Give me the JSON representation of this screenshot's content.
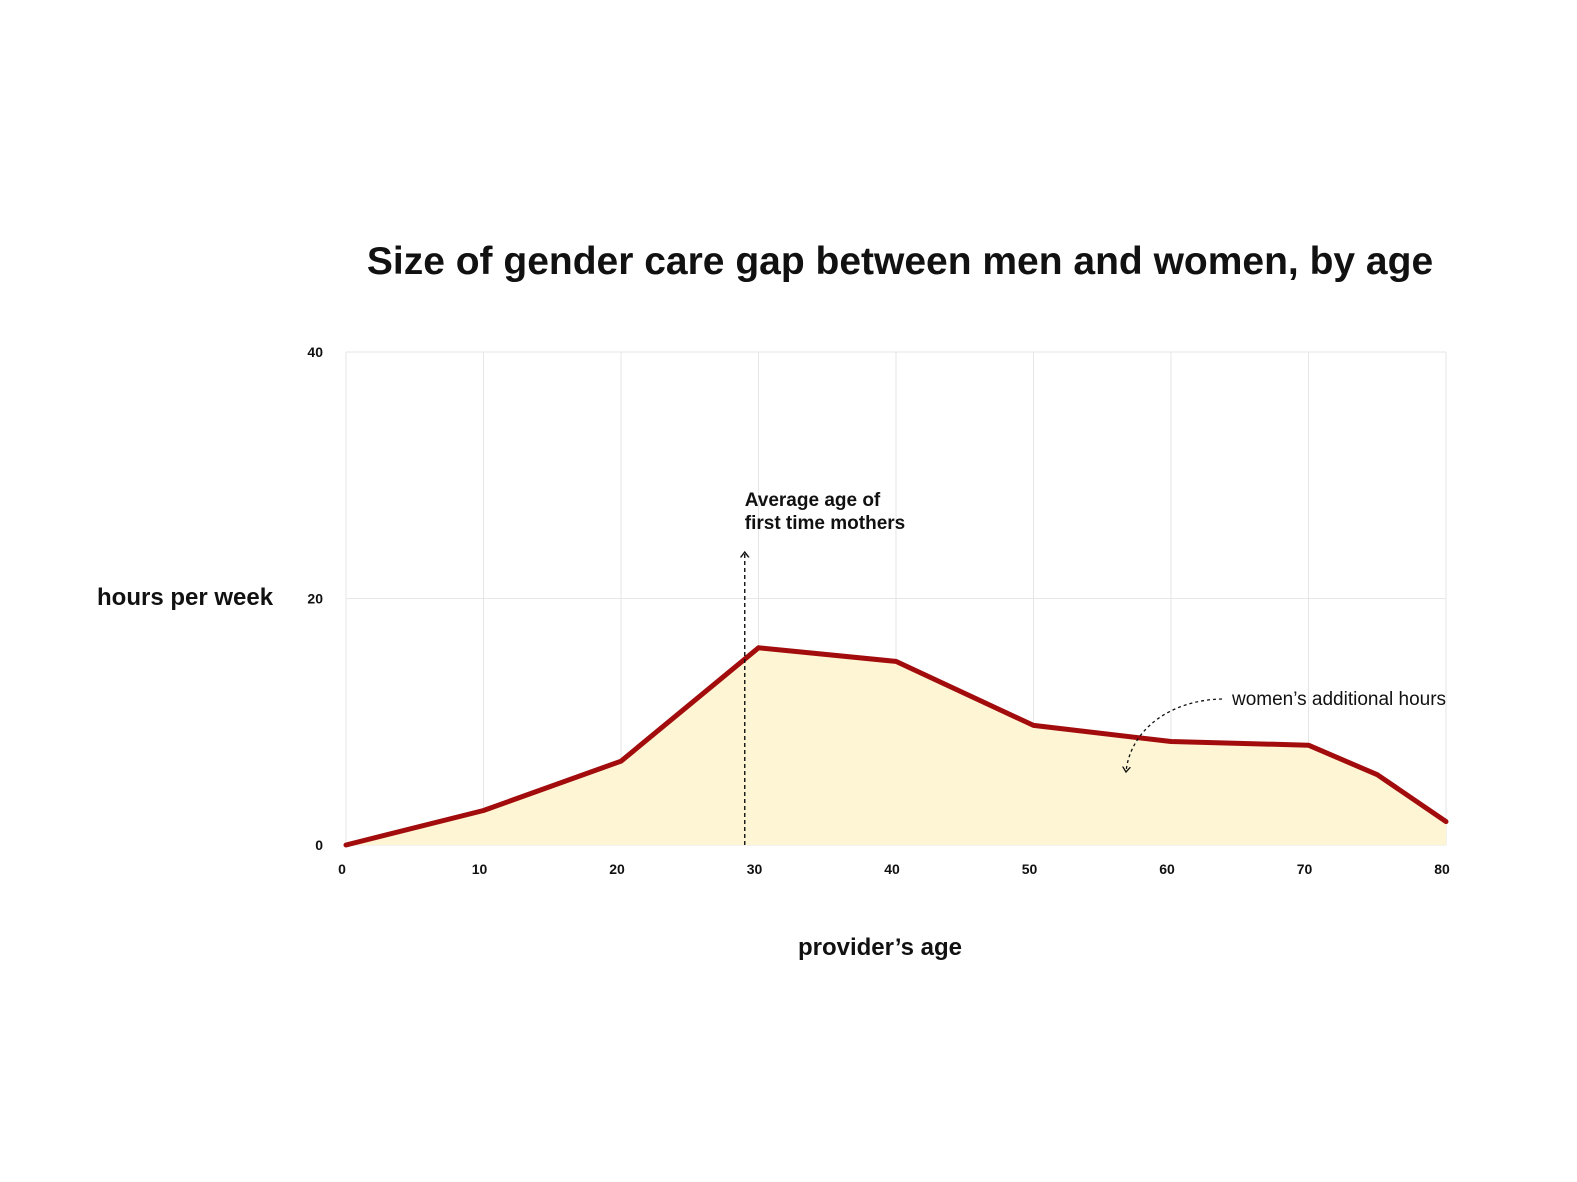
{
  "chart_data": {
    "type": "area",
    "title": "Size of gender care gap between men and women, by age",
    "xlabel": "provider’s age",
    "ylabel": "hours per week",
    "xlim": [
      0,
      80
    ],
    "ylim": [
      0,
      40
    ],
    "x_ticks": [
      "0",
      "10",
      "20",
      "30",
      "40",
      "50",
      "60",
      "70",
      "80"
    ],
    "y_ticks": [
      "0",
      "20",
      "40"
    ],
    "grid": true,
    "series": [
      {
        "x": [
          0,
          10,
          20,
          30,
          40,
          50,
          60,
          70,
          75,
          80
        ],
        "values": [
          0,
          2.8,
          6.8,
          16,
          14.9,
          9.7,
          8.4,
          8.1,
          5.7,
          1.9
        ]
      }
    ],
    "colors": {
      "line": "#a30c0c",
      "fill": "#fdf5d4",
      "grid": "#e6e6e6"
    },
    "annotations": [
      {
        "lines": [
          "Average age of",
          "first time mothers"
        ],
        "x": 29
      },
      {
        "text": "women’s additional hours"
      }
    ]
  }
}
